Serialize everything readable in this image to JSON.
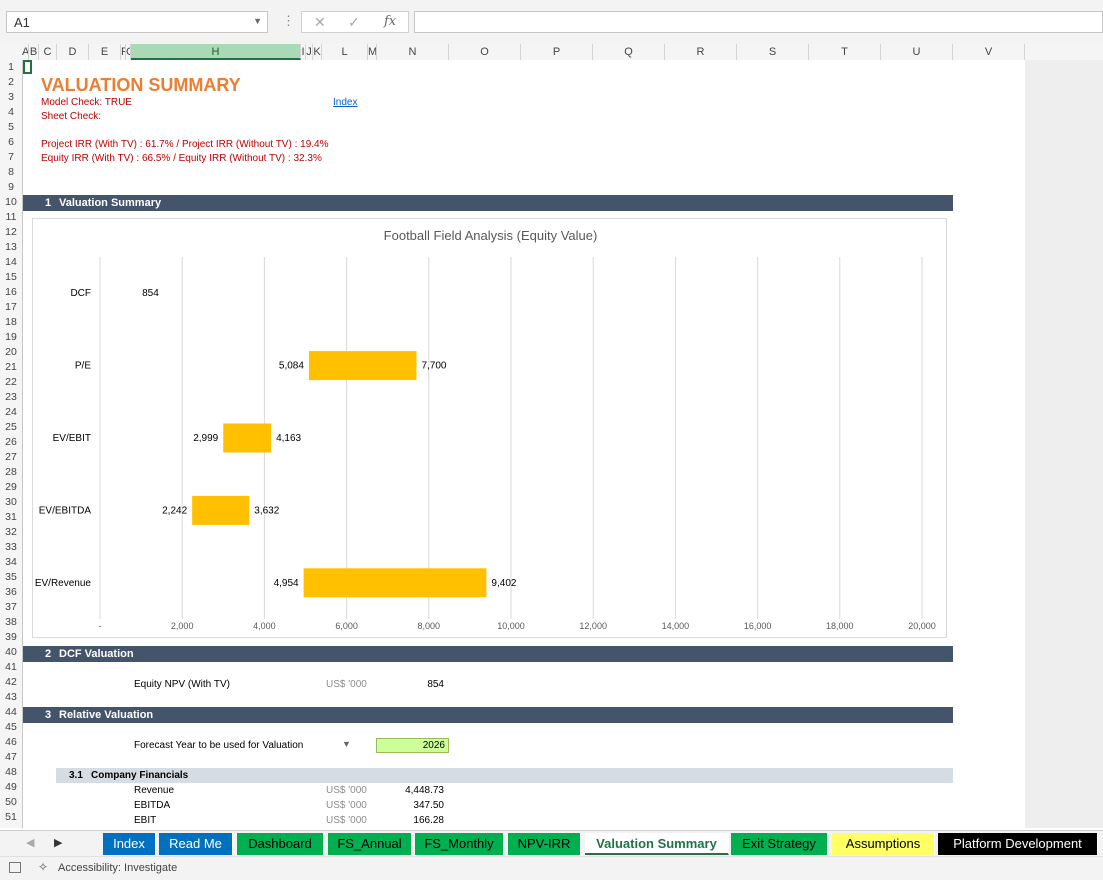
{
  "formula_bar": {
    "name_box": "A1",
    "fx_label": "fx",
    "cancel_glyph": "✕",
    "enter_glyph": "✓",
    "formula": ""
  },
  "columns": [
    "A",
    "B",
    "C",
    "D",
    "E",
    "F",
    "G",
    "H",
    "I",
    "J",
    "K",
    "L",
    "M",
    "N",
    "O",
    "P",
    "Q",
    "R",
    "S",
    "T",
    "U",
    "V"
  ],
  "rows": [
    "1",
    "2",
    "3",
    "4",
    "5",
    "6",
    "7",
    "8",
    "9",
    "10",
    "11",
    "12",
    "13",
    "14",
    "15",
    "16",
    "17",
    "18",
    "19",
    "20",
    "21",
    "22",
    "23",
    "24",
    "25",
    "26",
    "27",
    "28",
    "29",
    "30",
    "31",
    "32",
    "33",
    "34",
    "35",
    "36",
    "37",
    "38",
    "39",
    "40",
    "41",
    "42",
    "43",
    "44",
    "45",
    "46",
    "47",
    "48",
    "49",
    "50",
    "51"
  ],
  "sheet": {
    "title": "VALUATION SUMMARY",
    "model_check": "Model Check: TRUE",
    "sheet_check": "Sheet Check:",
    "index_link": "Index",
    "project_irr": "Project IRR (With TV) : 61.7% / Project IRR (Without TV) : 19.4%",
    "equity_irr": "Equity IRR (With TV) : 66.5% / Equity IRR (Without TV) : 32.3%",
    "sections": [
      {
        "num": "1",
        "label": "Valuation Summary"
      },
      {
        "num": "2",
        "label": "DCF Valuation"
      },
      {
        "num": "3",
        "label": "Relative Valuation"
      }
    ],
    "dcf": {
      "label": "Equity NPV (With TV)",
      "unit": "US$ '000",
      "value": "854"
    },
    "relative": {
      "forecast_label": "Forecast Year to be used for Valuation",
      "forecast_year": "2026"
    },
    "sub_section": {
      "num": "3.1",
      "label": "Company Financials"
    },
    "financials": [
      {
        "label": "Revenue",
        "unit": "US$ '000",
        "value": "4,448.73"
      },
      {
        "label": "EBITDA",
        "unit": "US$ '000",
        "value": "347.50"
      },
      {
        "label": "EBIT",
        "unit": "US$ '000",
        "value": "166.28"
      }
    ]
  },
  "chart_data": {
    "type": "bar",
    "orientation": "horizontal-floating",
    "title": "Football Field Analysis (Equity Value)",
    "categories": [
      "DCF",
      "P/E",
      "EV/EBIT",
      "EV/EBITDA",
      "EV/Revenue"
    ],
    "low": [
      854,
      5084,
      2999,
      2242,
      4954
    ],
    "high": [
      null,
      7700,
      4163,
      3632,
      9402
    ],
    "low_labels": [
      "854",
      "5,084",
      "2,999",
      "2,242",
      "4,954"
    ],
    "high_labels": [
      "",
      "7,700",
      "4,163",
      "3,632",
      "9,402"
    ],
    "xlim": [
      0,
      20000
    ],
    "xticks": [
      "-",
      "2,000",
      "4,000",
      "6,000",
      "8,000",
      "10,000",
      "12,000",
      "14,000",
      "16,000",
      "18,000",
      "20,000"
    ],
    "bar_color": "#ffc000",
    "grid": true
  },
  "tabs": [
    {
      "label": "Index",
      "bg": "#0070c0",
      "fg": "#ffffff"
    },
    {
      "label": "Read Me",
      "bg": "#0070c0",
      "fg": "#ffffff"
    },
    {
      "label": "Dashboard",
      "bg": "#00b050",
      "fg": "#000000"
    },
    {
      "label": "FS_Annual",
      "bg": "#00b050",
      "fg": "#000000"
    },
    {
      "label": "FS_Monthly",
      "bg": "#00b050",
      "fg": "#000000"
    },
    {
      "label": "NPV-IRR",
      "bg": "#00b050",
      "fg": "#000000"
    },
    {
      "label": "Valuation Summary",
      "bg": "#ffffff",
      "fg": "#217346",
      "active": true
    },
    {
      "label": "Exit Strategy",
      "bg": "#00b050",
      "fg": "#000000"
    },
    {
      "label": "Assumptions",
      "bg": "#ffff66",
      "fg": "#000000"
    },
    {
      "label": "Platform Development",
      "bg": "#000000",
      "fg": "#ffffff"
    }
  ],
  "status": {
    "accessibility": "Accessibility: Investigate"
  }
}
